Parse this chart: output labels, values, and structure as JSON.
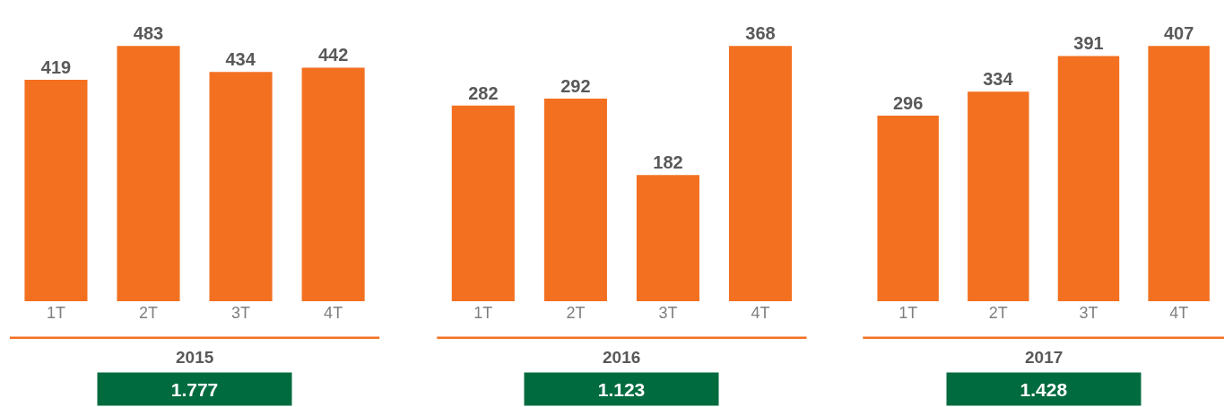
{
  "chart_data": [
    {
      "type": "bar",
      "categories": [
        "1T",
        "2T",
        "3T",
        "4T"
      ],
      "values": [
        419,
        483,
        434,
        442
      ],
      "color": "#f37021",
      "data_labels": true,
      "xlabel": "2015",
      "annotations": [
        "1.777"
      ],
      "tick_labels": "x"
    },
    {
      "type": "bar",
      "categories": [
        "1T",
        "2T",
        "3T",
        "4T"
      ],
      "values": [
        282,
        292,
        182,
        368
      ],
      "color": "#f37021",
      "data_labels": true,
      "xlabel": "2016",
      "annotations": [
        "1.123"
      ],
      "tick_labels": "x"
    },
    {
      "type": "bar",
      "categories": [
        "1T",
        "2T",
        "3T",
        "4T"
      ],
      "values": [
        296,
        334,
        391,
        407
      ],
      "color": "#f37021",
      "data_labels": true,
      "xlabel": "2017",
      "annotations": [
        "1.428"
      ],
      "tick_labels": "x"
    }
  ]
}
